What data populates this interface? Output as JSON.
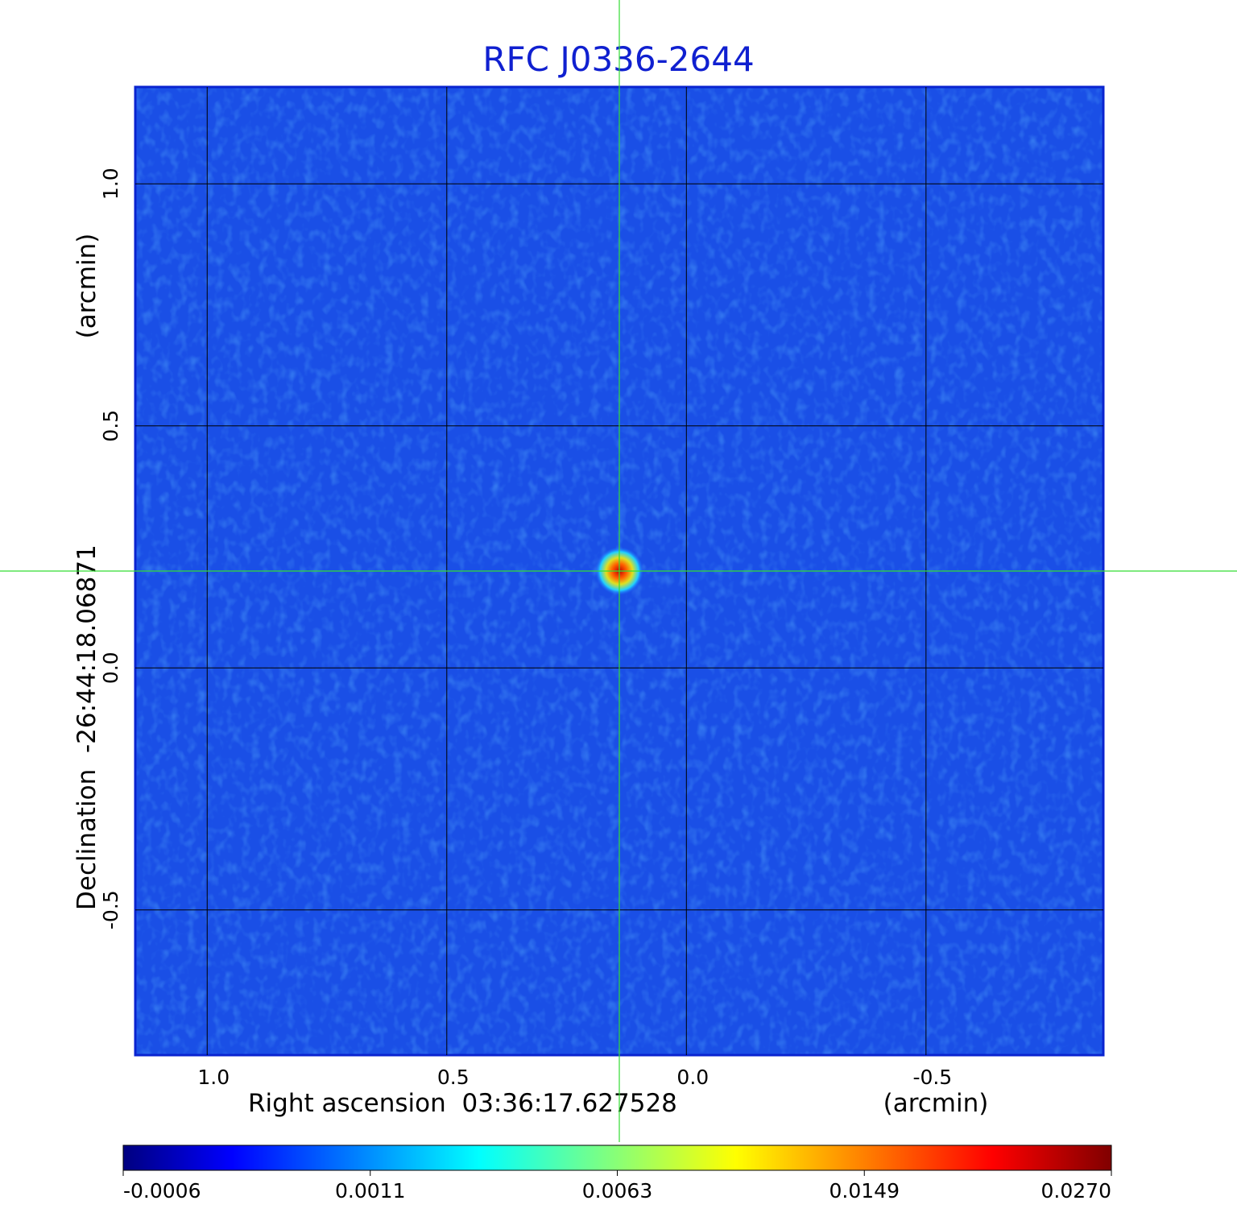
{
  "chart_data": {
    "type": "image",
    "title": "RFC J0336-2644",
    "xlabel": "Right ascension  03:36:17.627528",
    "xunit": "(arcmin)",
    "ylabel": "Declination  -26:44:18.06871",
    "yunit": "(arcmin)",
    "xlim": [
      1.15,
      -0.87
    ],
    "ylim": [
      -0.8,
      1.2
    ],
    "xticks": [
      {
        "value": 1.0,
        "label": "1.0"
      },
      0.5,
      {
        "value": 0.0,
        "label": "0.0"
      },
      -0.5
    ],
    "yticks": [
      -0.5,
      {
        "value": 0.0,
        "label": "0.0"
      },
      0.5,
      {
        "value": 1.0,
        "label": "1.0"
      }
    ],
    "grid": true,
    "crosshair": {
      "x": 0.14,
      "y": 0.2,
      "color": "#33dd33"
    },
    "colormap": "jet",
    "colorbar_ticks": [
      -0.0006,
      0.0011,
      0.0063,
      0.0149,
      {
        "value": 0.027,
        "label": "0.0270"
      }
    ]
  }
}
